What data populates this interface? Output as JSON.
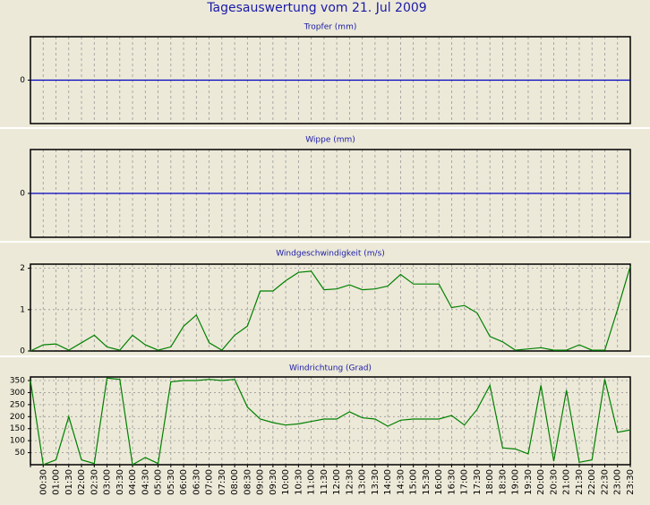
{
  "title": "Tagesauswertung vom 21. Jul 2009",
  "chart_data": [
    {
      "type": "line",
      "title": "Tropfer (mm)",
      "color": "#0000c0",
      "ylim": [
        -1,
        1
      ],
      "yticks": [
        0
      ],
      "grid": true,
      "values": [
        0,
        0,
        0,
        0,
        0,
        0,
        0,
        0,
        0,
        0,
        0,
        0,
        0,
        0,
        0,
        0,
        0,
        0,
        0,
        0,
        0,
        0,
        0,
        0,
        0,
        0,
        0,
        0,
        0,
        0,
        0,
        0,
        0,
        0,
        0,
        0,
        0,
        0,
        0,
        0,
        0,
        0,
        0,
        0,
        0,
        0,
        0,
        0
      ]
    },
    {
      "type": "line",
      "title": "Wippe (mm)",
      "color": "#0000c0",
      "ylim": [
        -1,
        1
      ],
      "yticks": [
        0
      ],
      "grid": true,
      "values": [
        0,
        0,
        0,
        0,
        0,
        0,
        0,
        0,
        0,
        0,
        0,
        0,
        0,
        0,
        0,
        0,
        0,
        0,
        0,
        0,
        0,
        0,
        0,
        0,
        0,
        0,
        0,
        0,
        0,
        0,
        0,
        0,
        0,
        0,
        0,
        0,
        0,
        0,
        0,
        0,
        0,
        0,
        0,
        0,
        0,
        0,
        0,
        0
      ]
    },
    {
      "type": "line",
      "title": "Windgeschwindigkeit (m/s)",
      "color": "#008000",
      "ylim": [
        0,
        2.1
      ],
      "yticks": [
        0,
        1,
        2
      ],
      "grid": true,
      "values": [
        0,
        0.15,
        0.17,
        0.02,
        0.2,
        0.38,
        0.1,
        0.02,
        0.38,
        0.15,
        0.02,
        0.1,
        0.6,
        0.87,
        0.2,
        0.02,
        0.38,
        0.6,
        1.45,
        1.45,
        1.7,
        1.9,
        1.93,
        1.48,
        1.5,
        1.6,
        1.48,
        1.5,
        1.57,
        1.85,
        1.62,
        1.62,
        1.62,
        1.05,
        1.1,
        0.92,
        0.35,
        0.22,
        0.02,
        0.05,
        0.08,
        0.02,
        0.02,
        0.15,
        0.02,
        0.02,
        1.0,
        2.05
      ]
    },
    {
      "type": "line",
      "title": "Windrichtung (Grad)",
      "color": "#008000",
      "ylim": [
        0,
        365
      ],
      "yticks": [
        50,
        100,
        150,
        200,
        250,
        300,
        350
      ],
      "grid": true,
      "categories": [
        null,
        "00:30",
        "01:00",
        "01:30",
        "02:00",
        "02:30",
        "03:00",
        "03:30",
        "04:00",
        "04:30",
        "05:00",
        "05:30",
        "06:00",
        "06:30",
        "07:00",
        "07:30",
        "08:00",
        "08:30",
        "09:00",
        "09:30",
        "10:00",
        "10:30",
        "11:00",
        "11:30",
        "12:00",
        "12:30",
        "13:00",
        "13:30",
        "14:00",
        "14:30",
        "15:00",
        "15:30",
        "16:00",
        "16:30",
        "17:00",
        "17:30",
        "18:00",
        "18:30",
        "19:00",
        "19:30",
        "20:00",
        "20:30",
        "21:00",
        "21:30",
        "22:00",
        "22:30",
        "23:00",
        "23:30"
      ],
      "values": [
        350,
        0,
        20,
        200,
        20,
        5,
        360,
        355,
        0,
        30,
        5,
        345,
        350,
        350,
        355,
        350,
        355,
        240,
        190,
        175,
        165,
        170,
        180,
        190,
        190,
        220,
        195,
        190,
        160,
        185,
        190,
        190,
        190,
        205,
        165,
        230,
        330,
        70,
        65,
        45,
        330,
        15,
        310,
        10,
        20,
        355,
        135,
        145
      ]
    }
  ]
}
